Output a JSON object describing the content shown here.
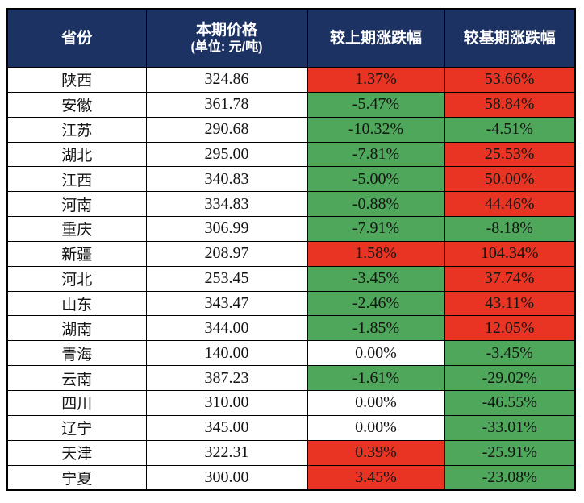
{
  "chart_data": {
    "type": "table",
    "columns": [
      {
        "label": "省份"
      },
      {
        "label": "本期价格",
        "sublabel": "(单位: 元/吨)"
      },
      {
        "label": "较上期涨跌幅"
      },
      {
        "label": "较基期涨跌幅"
      }
    ],
    "rows": [
      {
        "province": "陕西",
        "price": "324.86",
        "change_prev": "1.37%",
        "change_prev_direction": "up",
        "change_base": "53.66%",
        "change_base_direction": "up"
      },
      {
        "province": "安徽",
        "price": "361.78",
        "change_prev": "-5.47%",
        "change_prev_direction": "down",
        "change_base": "58.84%",
        "change_base_direction": "up"
      },
      {
        "province": "江苏",
        "price": "290.68",
        "change_prev": "-10.32%",
        "change_prev_direction": "down",
        "change_base": "-4.51%",
        "change_base_direction": "down"
      },
      {
        "province": "湖北",
        "price": "295.00",
        "change_prev": "-7.81%",
        "change_prev_direction": "down",
        "change_base": "25.53%",
        "change_base_direction": "up"
      },
      {
        "province": "江西",
        "price": "340.83",
        "change_prev": "-5.00%",
        "change_prev_direction": "down",
        "change_base": "50.00%",
        "change_base_direction": "up"
      },
      {
        "province": "河南",
        "price": "334.83",
        "change_prev": "-0.88%",
        "change_prev_direction": "down",
        "change_base": "44.46%",
        "change_base_direction": "up"
      },
      {
        "province": "重庆",
        "price": "306.99",
        "change_prev": "-7.91%",
        "change_prev_direction": "down",
        "change_base": "-8.18%",
        "change_base_direction": "down"
      },
      {
        "province": "新疆",
        "price": "208.97",
        "change_prev": "1.58%",
        "change_prev_direction": "up",
        "change_base": "104.34%",
        "change_base_direction": "up"
      },
      {
        "province": "河北",
        "price": "253.45",
        "change_prev": "-3.45%",
        "change_prev_direction": "down",
        "change_base": "37.74%",
        "change_base_direction": "up"
      },
      {
        "province": "山东",
        "price": "343.47",
        "change_prev": "-2.46%",
        "change_prev_direction": "down",
        "change_base": "43.11%",
        "change_base_direction": "up"
      },
      {
        "province": "湖南",
        "price": "344.00",
        "change_prev": "-1.85%",
        "change_prev_direction": "down",
        "change_base": "12.05%",
        "change_base_direction": "up"
      },
      {
        "province": "青海",
        "price": "140.00",
        "change_prev": "0.00%",
        "change_prev_direction": "flat",
        "change_base": "-3.45%",
        "change_base_direction": "down"
      },
      {
        "province": "云南",
        "price": "387.23",
        "change_prev": "-1.61%",
        "change_prev_direction": "down",
        "change_base": "-29.02%",
        "change_base_direction": "down"
      },
      {
        "province": "四川",
        "price": "310.00",
        "change_prev": "0.00%",
        "change_prev_direction": "flat",
        "change_base": "-46.55%",
        "change_base_direction": "down"
      },
      {
        "province": "辽宁",
        "price": "345.00",
        "change_prev": "0.00%",
        "change_prev_direction": "flat",
        "change_base": "-33.01%",
        "change_base_direction": "down"
      },
      {
        "province": "天津",
        "price": "322.31",
        "change_prev": "0.39%",
        "change_prev_direction": "up",
        "change_base": "-25.91%",
        "change_base_direction": "down"
      },
      {
        "province": "宁夏",
        "price": "300.00",
        "change_prev": "3.45%",
        "change_prev_direction": "up",
        "change_base": "-23.08%",
        "change_base_direction": "down"
      }
    ],
    "layout_hints": {
      "grid": true,
      "header_background": "#1C3263",
      "header_text_color": "#FFFFFF",
      "increase_cell_background": "#E93323",
      "decrease_cell_background": "#4EA75A",
      "no_change_cell_background": "#FFFFFF",
      "body_text_color": "#151515"
    }
  }
}
